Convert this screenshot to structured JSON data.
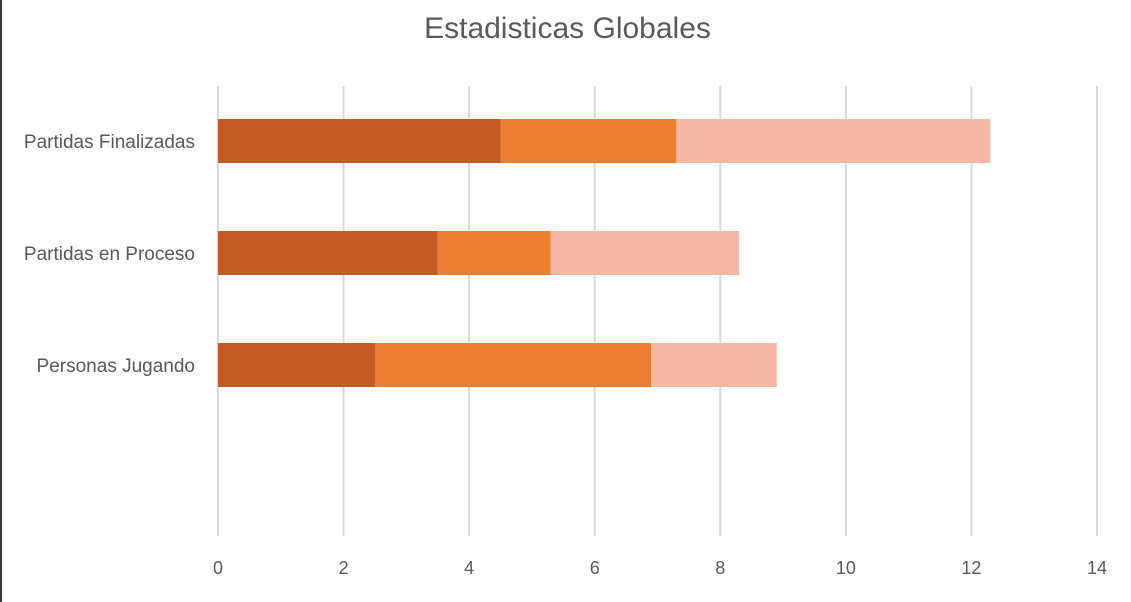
{
  "chart_data": {
    "type": "bar",
    "orientation": "horizontal",
    "stacked": true,
    "title": "Estadisticas Globales",
    "xlabel": "",
    "ylabel": "",
    "categories": [
      "Partidas Finalizadas",
      "Partidas en Proceso",
      "Personas Jugando"
    ],
    "series": [
      {
        "values": [
          4.5,
          3.5,
          2.5
        ],
        "color": "#c55a22"
      },
      {
        "values": [
          2.8,
          1.8,
          4.4
        ],
        "color": "#ed7d31"
      },
      {
        "values": [
          5.0,
          3.0,
          2.0
        ],
        "color": "#f4b8a4"
      }
    ],
    "xlim": [
      0,
      14
    ],
    "xticks": [
      "0",
      "2",
      "4",
      "6",
      "8",
      "10",
      "12",
      "14"
    ],
    "grid": true,
    "legend": "none",
    "gridline_color": "#d9d9d9"
  }
}
